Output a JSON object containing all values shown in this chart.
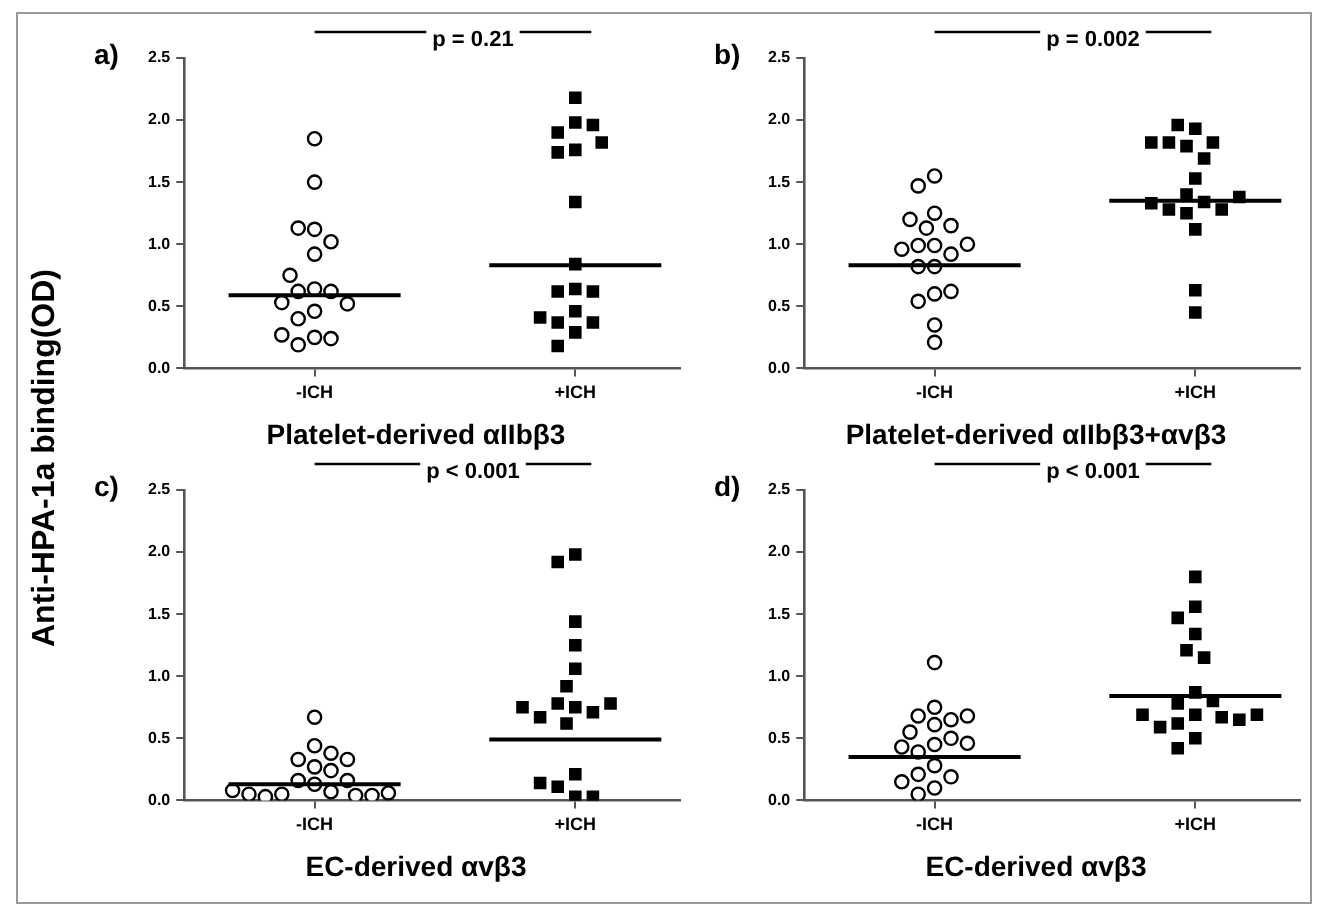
{
  "chart_data": [
    {
      "type": "scatter",
      "title": "a)",
      "xlabel": "Platelet-derived αIIbβ3",
      "ylabel": "Anti-HPA-1a binding(OD)",
      "annotations": [
        "p = 0.21"
      ],
      "categories": [
        "-ICH",
        "+ICH"
      ],
      "ylim": [
        0,
        2.5
      ],
      "yticks": [
        {
          "value": 0,
          "label": "0.0"
        },
        {
          "value": 0.5,
          "label": "0.5"
        },
        {
          "value": 1,
          "label": "1.0"
        },
        {
          "value": 1.5,
          "label": "1.5"
        },
        {
          "value": 2,
          "label": "2.0"
        },
        {
          "value": 2.5,
          "label": "2.5"
        }
      ],
      "series": [
        {
          "type": "scatter",
          "marker": "circle",
          "color": "#000000",
          "x": [
            "-ICH",
            "-ICH",
            "-ICH",
            "-ICH",
            "-ICH",
            "-ICH",
            "-ICH",
            "-ICH",
            "-ICH",
            "-ICH",
            "-ICH",
            "-ICH",
            "-ICH",
            "-ICH",
            "-ICH",
            "-ICH",
            "-ICH",
            "-ICH"
          ],
          "values": [
            1.85,
            1.5,
            1.12,
            1.13,
            1.02,
            0.92,
            0.64,
            0.62,
            0.62,
            0.75,
            0.53,
            0.46,
            0.52,
            0.4,
            0.25,
            0.19,
            0.24,
            0.27
          ]
        },
        {
          "type": "scatter",
          "marker": "square",
          "color": "#000000",
          "x": [
            "+ICH",
            "+ICH",
            "+ICH",
            "+ICH",
            "+ICH",
            "+ICH",
            "+ICH",
            "+ICH",
            "+ICH",
            "+ICH",
            "+ICH",
            "+ICH",
            "+ICH",
            "+ICH",
            "+ICH",
            "+ICH",
            "+ICH",
            "+ICH"
          ],
          "values": [
            2.18,
            1.98,
            1.9,
            1.96,
            1.76,
            1.74,
            1.82,
            1.34,
            0.84,
            0.64,
            0.62,
            0.62,
            0.46,
            0.37,
            0.29,
            0.37,
            0.41,
            0.18
          ]
        },
        {
          "type": "box",
          "color": "#000000",
          "boxes": [
            {
              "low": 0.59,
              "q1": 0.59,
              "median": 0.59,
              "q3": 0.59,
              "high": 0.59
            },
            {
              "low": 0.83,
              "q1": 0.83,
              "median": 0.83,
              "q3": 0.83,
              "high": 0.83
            }
          ]
        }
      ]
    },
    {
      "type": "scatter",
      "title": "b)",
      "xlabel": "Platelet-derived αIIbβ3+αvβ3",
      "annotations": [
        "p = 0.002"
      ],
      "categories": [
        "-ICH",
        "+ICH"
      ],
      "ylim": [
        0,
        2.5
      ],
      "yticks": [
        {
          "value": 0,
          "label": "0.0"
        },
        {
          "value": 0.5,
          "label": "0.5"
        },
        {
          "value": 1,
          "label": "1.0"
        },
        {
          "value": 1.5,
          "label": "1.5"
        },
        {
          "value": 2,
          "label": "2.0"
        },
        {
          "value": 2.5,
          "label": "2.5"
        }
      ],
      "series": [
        {
          "type": "scatter",
          "marker": "circle",
          "color": "#000000",
          "x": [
            "-ICH",
            "-ICH",
            "-ICH",
            "-ICH",
            "-ICH",
            "-ICH",
            "-ICH",
            "-ICH",
            "-ICH",
            "-ICH",
            "-ICH",
            "-ICH",
            "-ICH",
            "-ICH",
            "-ICH",
            "-ICH",
            "-ICH",
            "-ICH"
          ],
          "values": [
            1.55,
            1.47,
            1.25,
            1.13,
            1.15,
            1.2,
            0.99,
            0.99,
            0.92,
            0.96,
            1.0,
            0.82,
            0.82,
            0.6,
            0.54,
            0.62,
            0.35,
            0.21
          ]
        },
        {
          "type": "scatter",
          "marker": "square",
          "color": "#000000",
          "x": [
            "+ICH",
            "+ICH",
            "+ICH",
            "+ICH",
            "+ICH",
            "+ICH",
            "+ICH",
            "+ICH",
            "+ICH",
            "+ICH",
            "+ICH",
            "+ICH",
            "+ICH",
            "+ICH",
            "+ICH",
            "+ICH",
            "+ICH",
            "+ICH"
          ],
          "values": [
            1.93,
            1.96,
            1.82,
            1.79,
            1.82,
            1.82,
            1.69,
            1.53,
            1.4,
            1.34,
            1.28,
            1.25,
            1.28,
            1.33,
            1.38,
            1.12,
            0.63,
            0.45
          ]
        },
        {
          "type": "box",
          "color": "#000000",
          "boxes": [
            {
              "low": 0.83,
              "q1": 0.83,
              "median": 0.83,
              "q3": 0.83,
              "high": 0.83
            },
            {
              "low": 1.35,
              "q1": 1.35,
              "median": 1.35,
              "q3": 1.35,
              "high": 1.35
            }
          ]
        }
      ]
    },
    {
      "type": "scatter",
      "title": "c)",
      "xlabel": "EC-derived αvβ3",
      "annotations": [
        "p < 0.001"
      ],
      "categories": [
        "-ICH",
        "+ICH"
      ],
      "ylim": [
        0,
        2.5
      ],
      "yticks": [
        {
          "value": 0,
          "label": "0.0"
        },
        {
          "value": 0.5,
          "label": "0.5"
        },
        {
          "value": 1,
          "label": "1.0"
        },
        {
          "value": 1.5,
          "label": "1.5"
        },
        {
          "value": 2,
          "label": "2.0"
        },
        {
          "value": 2.5,
          "label": "2.5"
        }
      ],
      "series": [
        {
          "type": "scatter",
          "marker": "circle",
          "color": "#000000",
          "x": [
            "-ICH",
            "-ICH",
            "-ICH",
            "-ICH",
            "-ICH",
            "-ICH",
            "-ICH",
            "-ICH",
            "-ICH",
            "-ICH",
            "-ICH",
            "-ICH",
            "-ICH",
            "-ICH",
            "-ICH",
            "-ICH",
            "-ICH",
            "-ICH"
          ],
          "values": [
            0.67,
            0.44,
            0.33,
            0.27,
            0.24,
            0.33,
            0.38,
            0.16,
            0.13,
            0.16,
            0.07,
            0.05,
            0.04,
            0.03,
            0.04,
            0.05,
            0.06,
            0.08
          ]
        },
        {
          "type": "scatter",
          "marker": "square",
          "color": "#000000",
          "x": [
            "+ICH",
            "+ICH",
            "+ICH",
            "+ICH",
            "+ICH",
            "+ICH",
            "+ICH",
            "+ICH",
            "+ICH",
            "+ICH",
            "+ICH",
            "+ICH",
            "+ICH",
            "+ICH",
            "+ICH",
            "+ICH",
            "+ICH",
            "+ICH"
          ],
          "values": [
            1.98,
            1.92,
            1.44,
            1.25,
            1.06,
            0.92,
            0.75,
            0.78,
            0.71,
            0.78,
            0.62,
            0.67,
            0.75,
            0.21,
            0.11,
            0.03,
            0.03,
            0.14
          ]
        },
        {
          "type": "box",
          "color": "#000000",
          "boxes": [
            {
              "low": 0.13,
              "q1": 0.13,
              "median": 0.13,
              "q3": 0.13,
              "high": 0.13
            },
            {
              "low": 0.49,
              "q1": 0.49,
              "median": 0.49,
              "q3": 0.49,
              "high": 0.49
            }
          ]
        }
      ]
    },
    {
      "type": "scatter",
      "title": "d)",
      "xlabel": "EC-derived αvβ3",
      "annotations": [
        "p < 0.001"
      ],
      "categories": [
        "-ICH",
        "+ICH"
      ],
      "ylim": [
        0,
        2.5
      ],
      "yticks": [
        {
          "value": 0,
          "label": "0.0"
        },
        {
          "value": 0.5,
          "label": "0.5"
        },
        {
          "value": 1,
          "label": "1.0"
        },
        {
          "value": 1.5,
          "label": "1.5"
        },
        {
          "value": 2,
          "label": "2.0"
        },
        {
          "value": 2.5,
          "label": "2.5"
        }
      ],
      "series": [
        {
          "type": "scatter",
          "marker": "circle",
          "color": "#000000",
          "x": [
            "-ICH",
            "-ICH",
            "-ICH",
            "-ICH",
            "-ICH",
            "-ICH",
            "-ICH",
            "-ICH",
            "-ICH",
            "-ICH",
            "-ICH",
            "-ICH",
            "-ICH",
            "-ICH",
            "-ICH",
            "-ICH",
            "-ICH",
            "-ICH"
          ],
          "values": [
            1.11,
            0.75,
            0.68,
            0.61,
            0.65,
            0.68,
            0.55,
            0.5,
            0.45,
            0.39,
            0.43,
            0.46,
            0.28,
            0.21,
            0.19,
            0.15,
            0.1,
            0.05
          ]
        },
        {
          "type": "scatter",
          "marker": "square",
          "color": "#000000",
          "x": [
            "+ICH",
            "+ICH",
            "+ICH",
            "+ICH",
            "+ICH",
            "+ICH",
            "+ICH",
            "+ICH",
            "+ICH",
            "+ICH",
            "+ICH",
            "+ICH",
            "+ICH",
            "+ICH",
            "+ICH",
            "+ICH",
            "+ICH",
            "+ICH"
          ],
          "values": [
            1.8,
            1.56,
            1.47,
            1.34,
            1.21,
            1.15,
            0.87,
            0.78,
            0.8,
            0.69,
            0.67,
            0.62,
            0.59,
            0.65,
            0.69,
            0.69,
            0.5,
            0.42
          ]
        },
        {
          "type": "box",
          "color": "#000000",
          "boxes": [
            {
              "low": 0.35,
              "q1": 0.35,
              "median": 0.35,
              "q3": 0.35,
              "high": 0.35
            },
            {
              "low": 0.84,
              "q1": 0.84,
              "median": 0.84,
              "q3": 0.84,
              "high": 0.84
            }
          ]
        }
      ]
    }
  ]
}
